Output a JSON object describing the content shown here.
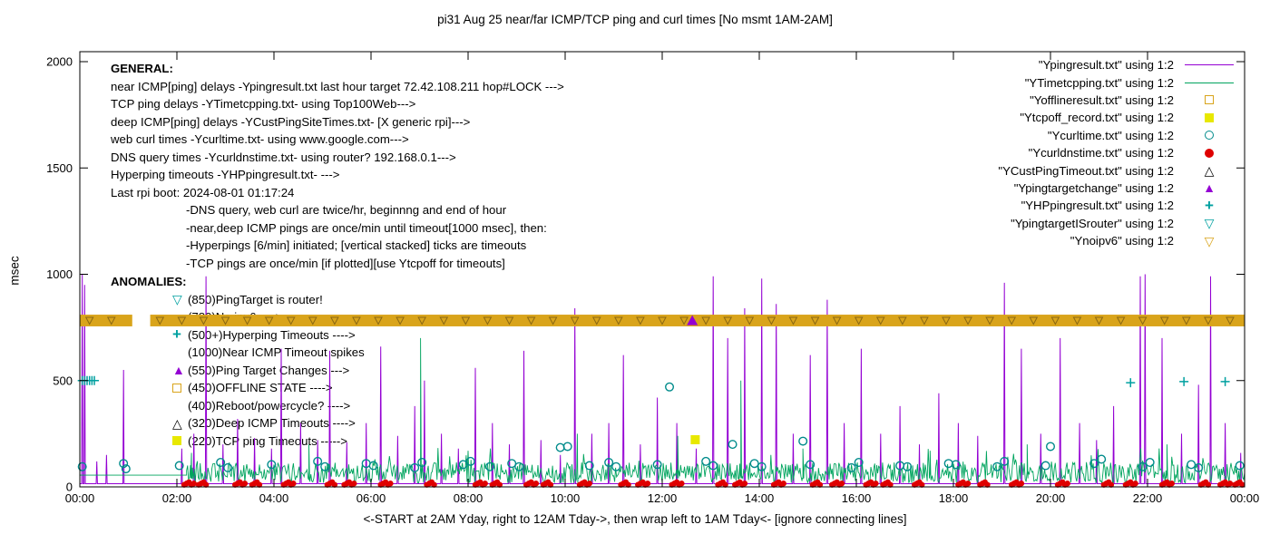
{
  "title": "pi31 Aug 25  near/far ICMP/TCP ping and curl times [No msmt 1AM-2AM]",
  "axes": {
    "ylabel": "msec",
    "xlabel": "<-START at 2AM Yday, right to 12AM Tday->, then wrap left to 1AM Tday<- [ignore connecting lines]",
    "y_ticks": [
      0,
      500,
      1000,
      1500,
      2000
    ],
    "x_ticks": [
      "00:00",
      "02:00",
      "04:00",
      "06:00",
      "08:00",
      "10:00",
      "12:00",
      "14:00",
      "16:00",
      "18:00",
      "20:00",
      "22:00",
      "00:00"
    ],
    "x_range_hours": [
      0,
      24
    ],
    "y_range_msec": [
      0,
      2000
    ]
  },
  "legend": [
    {
      "label": "\"Ypingresult.txt\" using 1:2",
      "marker": "line",
      "color": "#9400d3"
    },
    {
      "label": "\"YTimetcpping.txt\" using 1:2",
      "marker": "line",
      "color": "#00a45e"
    },
    {
      "label": "\"Yofflineresult.txt\" using 1:2",
      "marker": "square-open",
      "color": "#d9a41b"
    },
    {
      "label": "\"Ytcpoff_record.txt\" using 1:2",
      "marker": "square-filled",
      "color": "#e8e800"
    },
    {
      "label": "\"Ycurltime.txt\" using 1:2",
      "marker": "circle-open",
      "color": "#008b8b"
    },
    {
      "label": "\"Ycurldnstime.txt\" using 1:2",
      "marker": "circle-filled",
      "color": "#df0000"
    },
    {
      "label": "\"YCustPingTimeout.txt\" using 1:2",
      "marker": "triangle-open",
      "color": "#000000"
    },
    {
      "label": "\"Ypingtargetchange\" using 1:2",
      "marker": "triangle-filled",
      "color": "#9400d3"
    },
    {
      "label": "\"YHPpingresult.txt\" using 1:2",
      "marker": "plus",
      "color": "#00a0a0"
    },
    {
      "label": "\"YpingtargetISrouter\" using 1:2",
      "marker": "triangle-down-open",
      "color": "#00a0a0"
    },
    {
      "label": "\"Ynoipv6\" using 1:2",
      "marker": "triangle-down-open",
      "color": "#d9a41b"
    }
  ],
  "annotations": {
    "general": {
      "heading": "GENERAL:",
      "lines": [
        {
          "text": "near ICMP[ping] delays -Ypingresult.txt last hour target 72.42.108.211 hop#LOCK --->",
          "indent": 0
        },
        {
          "text": "TCP ping delays -YTimetcpping.txt- using Top100Web--->",
          "indent": 0
        },
        {
          "text": "deep ICMP[ping] delays -YCustPingSiteTimes.txt- [X generic rpi]--->",
          "indent": 0
        },
        {
          "text": "web curl times -Ycurltime.txt- using www.google.com--->",
          "indent": 0
        },
        {
          "text": "DNS query times -Ycurldnstime.txt- using router? 192.168.0.1--->",
          "indent": 0
        },
        {
          "text": "Hyperping timeouts -YHPpingresult.txt- --->",
          "indent": 0
        },
        {
          "text": "Last rpi boot: 2024-08-01 01:17:24",
          "indent": 0
        },
        {
          "text": "-DNS query, web curl are twice/hr, beginnng and end of hour",
          "indent": 1
        },
        {
          "text": "-near,deep ICMP pings are once/min until timeout[1000 msec], then:",
          "indent": 1
        },
        {
          "text": "-Hyperpings [6/min] initiated; [vertical stacked] ticks are timeouts",
          "indent": 1
        },
        {
          "text": "-TCP pings are once/min [if plotted][use Ytcpoff for timeouts]",
          "indent": 1
        }
      ]
    },
    "anomalies": {
      "heading": "ANOMALIES:",
      "lines": [
        {
          "icon": "triangle-down-open",
          "icon_color": "#00a0a0",
          "text": "(850)PingTarget is router!"
        },
        {
          "icon": "none",
          "icon_color": "",
          "text": "(780)No ipv6 ---->"
        },
        {
          "icon": "plus",
          "icon_color": "#00a0a0",
          "text": "(500+)Hyperping Timeouts ---->"
        },
        {
          "icon": "none",
          "icon_color": "",
          "text": "(1000)Near ICMP Timeout spikes"
        },
        {
          "icon": "triangle-filled",
          "icon_color": "#9400d3",
          "text": "(550)Ping Target Changes --->"
        },
        {
          "icon": "square-open",
          "icon_color": "#d9a41b",
          "text": "(450)OFFLINE STATE ---->"
        },
        {
          "icon": "none",
          "icon_color": "",
          "text": "(400)Reboot/powercycle? ---->"
        },
        {
          "icon": "triangle-open",
          "icon_color": "#000000",
          "text": "(320)Deep ICMP Timeouts ---->"
        },
        {
          "icon": "square-filled",
          "icon_color": "#e8e800",
          "text": "(220)TCP ping Timeouts ----->"
        }
      ]
    }
  },
  "chart_data": {
    "type": "line",
    "x_unit": "hours_0_to_24",
    "y_unit": "msec",
    "ylim": [
      0,
      2000
    ],
    "grid": false,
    "legend_position": "top-right",
    "series": [
      {
        "name": "Ypingresult.txt",
        "style": "line-spikes",
        "color": "#9400d3",
        "baseline": 15,
        "spikes": [
          [
            0.05,
            1000
          ],
          [
            0.1,
            950
          ],
          [
            0.35,
            120
          ],
          [
            0.55,
            150
          ],
          [
            0.9,
            550
          ],
          [
            2.1,
            180
          ],
          [
            2.35,
            250
          ],
          [
            2.6,
            990
          ],
          [
            2.95,
            200
          ],
          [
            3.25,
            320
          ],
          [
            3.6,
            230
          ],
          [
            3.95,
            180
          ],
          [
            4.15,
            650
          ],
          [
            4.55,
            300
          ],
          [
            4.9,
            220
          ],
          [
            5.15,
            640
          ],
          [
            5.5,
            210
          ],
          [
            5.9,
            300
          ],
          [
            6.2,
            660
          ],
          [
            6.55,
            240
          ],
          [
            6.9,
            380
          ],
          [
            7.1,
            500
          ],
          [
            7.45,
            250
          ],
          [
            7.8,
            180
          ],
          [
            8.15,
            560
          ],
          [
            8.5,
            300
          ],
          [
            8.85,
            200
          ],
          [
            9.15,
            640
          ],
          [
            9.5,
            220
          ],
          [
            9.9,
            150
          ],
          [
            10.2,
            840
          ],
          [
            10.55,
            250
          ],
          [
            10.9,
            300
          ],
          [
            11.2,
            620
          ],
          [
            11.55,
            200
          ],
          [
            11.9,
            420
          ],
          [
            12.3,
            300
          ],
          [
            12.7,
            180
          ],
          [
            13.05,
            990
          ],
          [
            13.35,
            700
          ],
          [
            13.7,
            840
          ],
          [
            14.05,
            980
          ],
          [
            14.35,
            860
          ],
          [
            14.7,
            250
          ],
          [
            15.05,
            620
          ],
          [
            15.4,
            880
          ],
          [
            15.75,
            300
          ],
          [
            16.1,
            650
          ],
          [
            16.5,
            250
          ],
          [
            16.9,
            380
          ],
          [
            17.3,
            200
          ],
          [
            17.7,
            440
          ],
          [
            18.1,
            300
          ],
          [
            18.5,
            240
          ],
          [
            19.05,
            960
          ],
          [
            19.4,
            650
          ],
          [
            19.8,
            250
          ],
          [
            20.2,
            700
          ],
          [
            20.6,
            300
          ],
          [
            20.95,
            220
          ],
          [
            21.3,
            380
          ],
          [
            21.85,
            990
          ],
          [
            21.95,
            1000
          ],
          [
            22.3,
            700
          ],
          [
            22.7,
            250
          ],
          [
            23.05,
            480
          ],
          [
            23.3,
            990
          ],
          [
            23.6,
            300
          ],
          [
            23.92,
            160
          ]
        ]
      },
      {
        "name": "YTimetcpping.txt",
        "style": "noise-line",
        "color": "#00a45e",
        "flat": [
          {
            "from": 0,
            "to": 2.2,
            "value": 55
          }
        ],
        "noise": {
          "from": 2.2,
          "to": 24,
          "min": 18,
          "max": 115,
          "step": 0.02,
          "seed": 42
        },
        "spikes": [
          [
            2.3,
            160
          ],
          [
            4.72,
            200
          ],
          [
            7.02,
            700
          ],
          [
            10.25,
            250
          ],
          [
            12.32,
            240
          ],
          [
            13.62,
            500
          ],
          [
            14.9,
            180
          ],
          [
            17.52,
            170
          ],
          [
            19.52,
            200
          ],
          [
            22.4,
            200
          ]
        ]
      },
      {
        "name": "Ycurltime.txt",
        "style": "scatter-open-circle",
        "color": "#008b8b",
        "points": [
          [
            0.05,
            95
          ],
          [
            0.9,
            110
          ],
          [
            0.95,
            85
          ],
          [
            2.05,
            100
          ],
          [
            2.9,
            115
          ],
          [
            3.05,
            90
          ],
          [
            3.95,
            105
          ],
          [
            4.9,
            120
          ],
          [
            5.05,
            95
          ],
          [
            5.9,
            110
          ],
          [
            6.05,
            100
          ],
          [
            6.9,
            90
          ],
          [
            7.05,
            115
          ],
          [
            7.9,
            105
          ],
          [
            8.05,
            120
          ],
          [
            8.45,
            95
          ],
          [
            8.9,
            110
          ],
          [
            9.05,
            95
          ],
          [
            9.9,
            185
          ],
          [
            10.05,
            190
          ],
          [
            10.5,
            100
          ],
          [
            10.9,
            115
          ],
          [
            11.05,
            95
          ],
          [
            11.9,
            105
          ],
          [
            12.15,
            470
          ],
          [
            12.9,
            120
          ],
          [
            13.05,
            100
          ],
          [
            13.45,
            200
          ],
          [
            13.9,
            110
          ],
          [
            14.05,
            95
          ],
          [
            14.9,
            215
          ],
          [
            15.05,
            105
          ],
          [
            15.9,
            90
          ],
          [
            16.05,
            115
          ],
          [
            16.9,
            100
          ],
          [
            17.05,
            95
          ],
          [
            17.9,
            110
          ],
          [
            18.05,
            105
          ],
          [
            18.9,
            95
          ],
          [
            19.05,
            120
          ],
          [
            19.9,
            100
          ],
          [
            20.0,
            190
          ],
          [
            20.9,
            110
          ],
          [
            21.05,
            130
          ],
          [
            21.9,
            95
          ],
          [
            22.05,
            115
          ],
          [
            22.9,
            105
          ],
          [
            23.05,
            90
          ],
          [
            23.9,
            100
          ]
        ]
      },
      {
        "name": "Ycurldnstime.txt",
        "style": "scatter-dot",
        "color": "#df0000",
        "base_value": 10,
        "spacing": 0.05,
        "clusters": [
          [
            2.15,
            5
          ],
          [
            2.45,
            4
          ],
          [
            3.2,
            5
          ],
          [
            3.55,
            4
          ],
          [
            4.2,
            5
          ],
          [
            5.1,
            4
          ],
          [
            5.45,
            5
          ],
          [
            6.2,
            5
          ],
          [
            7.15,
            4
          ],
          [
            8.15,
            5
          ],
          [
            8.5,
            4
          ],
          [
            9.2,
            5
          ],
          [
            9.55,
            4
          ],
          [
            10.3,
            5
          ],
          [
            11.15,
            4
          ],
          [
            11.5,
            5
          ],
          [
            12.2,
            5
          ],
          [
            13.15,
            4
          ],
          [
            13.5,
            5
          ],
          [
            14.3,
            5
          ],
          [
            15.1,
            4
          ],
          [
            15.5,
            5
          ],
          [
            16.2,
            5
          ],
          [
            16.55,
            4
          ],
          [
            17.2,
            4
          ],
          [
            18.1,
            5
          ],
          [
            18.55,
            4
          ],
          [
            19.2,
            5
          ],
          [
            20.15,
            5
          ],
          [
            21.1,
            4
          ],
          [
            21.55,
            5
          ],
          [
            22.3,
            5
          ],
          [
            23.1,
            4
          ],
          [
            23.5,
            5
          ],
          [
            23.8,
            4
          ]
        ]
      },
      {
        "name": "YHPpingresult.txt",
        "style": "scatter-plus",
        "color": "#00a0a0",
        "points": [
          [
            0.05,
            500
          ],
          [
            0.1,
            500
          ],
          [
            0.15,
            500
          ],
          [
            0.2,
            500
          ],
          [
            0.25,
            500
          ],
          [
            0.3,
            500
          ],
          [
            21.65,
            490
          ],
          [
            22.75,
            495
          ],
          [
            23.6,
            495
          ]
        ]
      },
      {
        "name": "Ynoipv6",
        "style": "band",
        "color": "#d9a41b",
        "edge_color": "#8b6914",
        "y_range": [
          755,
          810
        ],
        "segments": [
          [
            0,
            1.08
          ],
          [
            1.45,
            24
          ]
        ],
        "marker_interval": 0.45
      },
      {
        "name": "Ypingtargetchange",
        "style": "scatter-filled-triangle",
        "color": "#9400d3",
        "points": [
          [
            12.62,
            782
          ]
        ]
      },
      {
        "name": "Ytcpoff_record.txt",
        "style": "scatter-filled-square",
        "color": "#e8e800",
        "points": [
          [
            12.68,
            222
          ]
        ]
      }
    ]
  }
}
